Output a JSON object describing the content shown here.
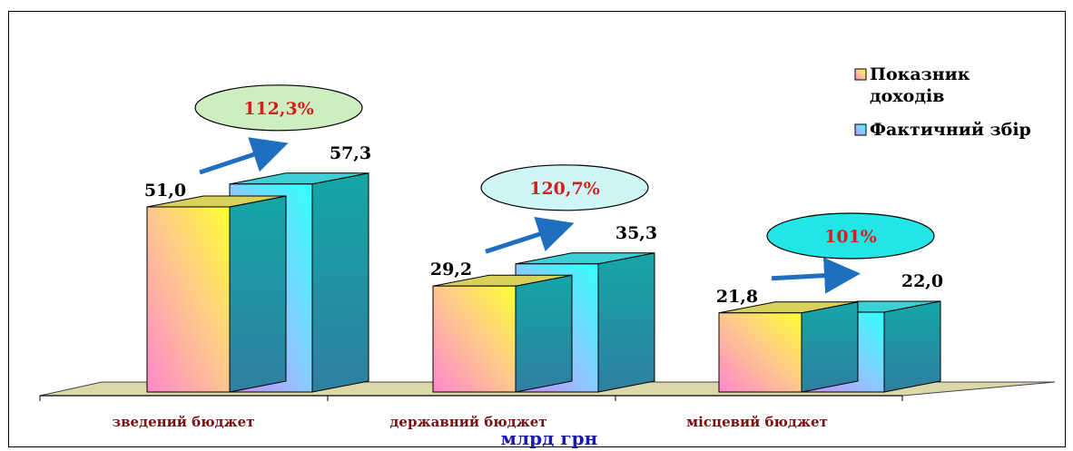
{
  "chart_data": {
    "type": "bar",
    "categories": [
      "зведений бюджет",
      "державний бюджет",
      "місцевий бюджет"
    ],
    "series": [
      {
        "name": "Показник доходів",
        "values": [
          51.0,
          29.2,
          21.8
        ],
        "labels": [
          "51,0",
          "29,2",
          "21,8"
        ]
      },
      {
        "name": "Фактичний збір",
        "values": [
          57.3,
          35.3,
          22.0
        ],
        "labels": [
          "57,3",
          "35,3",
          "22,0"
        ]
      }
    ],
    "annotations": [
      "112,3%",
      "120,7%",
      "101%"
    ],
    "annotation_colors": [
      "#cfeec0",
      "#cff6f6",
      "#22e6e6"
    ],
    "xlabel": "млрд грн",
    "ylim": [
      0,
      60
    ],
    "legend_position": "top-right",
    "colors": {
      "series1_top": "#ffff33",
      "series1_bottom": "#ff88cc",
      "series2_top": "#33ffff",
      "series2_bottom": "#cc88ff",
      "side": "#1e9a9a",
      "floor": "#dcd8a8",
      "arrow": "#1f6fc0"
    }
  },
  "legend": {
    "items": [
      {
        "label_line1": "Показник",
        "label_line2": "доходів"
      },
      {
        "label_line1": "Фактичний збір",
        "label_line2": ""
      }
    ]
  }
}
